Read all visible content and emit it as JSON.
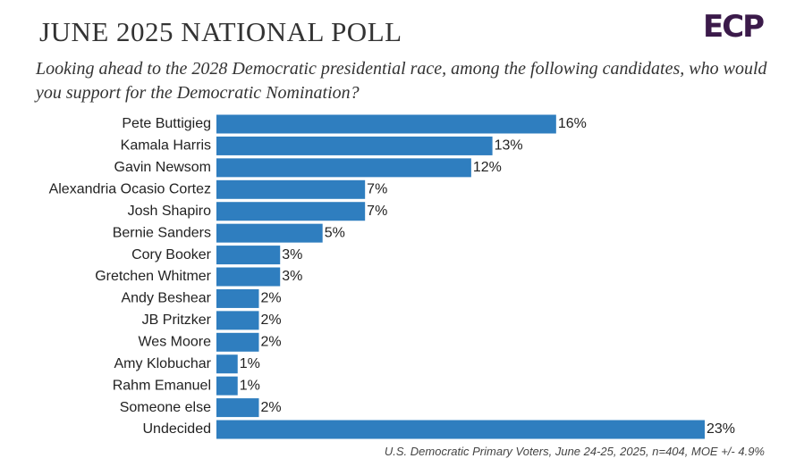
{
  "chart_data": {
    "type": "bar",
    "orientation": "horizontal",
    "title": "JUNE 2025 NATIONAL POLL",
    "subtitle": "Looking ahead to the 2028 Democratic presidential race, among the following candidates, who would you support for the Democratic Nomination?",
    "logo": "ECP",
    "footnote": "U.S. Democratic Primary Voters, June 24-25, 2025, n=404, MOE +/- 4.9%",
    "categories": [
      "Pete Buttigieg",
      "Kamala Harris",
      "Gavin Newsom",
      "Alexandria Ocasio Cortez",
      "Josh Shapiro",
      "Bernie Sanders",
      "Cory Booker",
      "Gretchen Whitmer",
      "Andy Beshear",
      "JB Pritzker",
      "Wes Moore",
      "Amy Klobuchar",
      "Rahm Emanuel",
      "Someone else",
      "Undecided"
    ],
    "values": [
      16,
      13,
      12,
      7,
      7,
      5,
      3,
      3,
      2,
      2,
      2,
      1,
      1,
      2,
      23
    ],
    "value_labels": [
      "16%",
      "13%",
      "12%",
      "7%",
      "7%",
      "5%",
      "3%",
      "3%",
      "2%",
      "2%",
      "2%",
      "1%",
      "1%",
      "2%",
      "23%"
    ],
    "color": "#2f7ebf"
  }
}
